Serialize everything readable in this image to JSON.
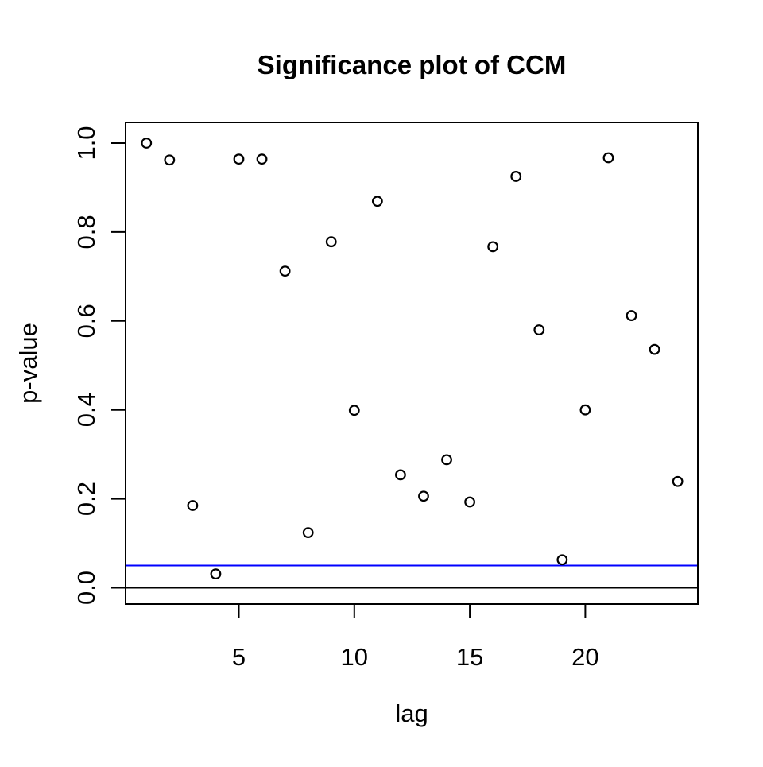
{
  "figure": {
    "background_color": "#ffffff",
    "text_color": "#000000"
  },
  "chart_data": {
    "type": "scatter",
    "title": "Significance plot of CCM",
    "xlabel": "lag",
    "ylabel": "p-value",
    "point_style": "open-circle",
    "point_color": "#000000",
    "grid": false,
    "legend": "none",
    "xlim": [
      0.08,
      24.92
    ],
    "ylim": [
      -0.04,
      1.04
    ],
    "x_ticks": [
      5,
      10,
      15,
      20
    ],
    "y_ticks": [
      "0.0",
      "0.2",
      "0.4",
      "0.6",
      "0.8",
      "1.0"
    ],
    "x": [
      1,
      2,
      3,
      4,
      5,
      6,
      7,
      8,
      9,
      10,
      11,
      12,
      13,
      14,
      15,
      16,
      17,
      18,
      19,
      20,
      21,
      22,
      23,
      24
    ],
    "y": [
      1.0,
      0.962,
      0.185,
      0.031,
      0.964,
      0.964,
      0.712,
      0.124,
      0.778,
      0.399,
      0.869,
      0.254,
      0.206,
      0.288,
      0.193,
      0.767,
      0.925,
      0.58,
      0.063,
      0.4,
      0.967,
      0.612,
      0.536,
      0.239
    ],
    "reference_lines": [
      {
        "orientation": "horizontal",
        "value": 0.05,
        "color": "#0000ff"
      },
      {
        "orientation": "horizontal",
        "value": 0.0,
        "color": "#000000"
      }
    ]
  }
}
